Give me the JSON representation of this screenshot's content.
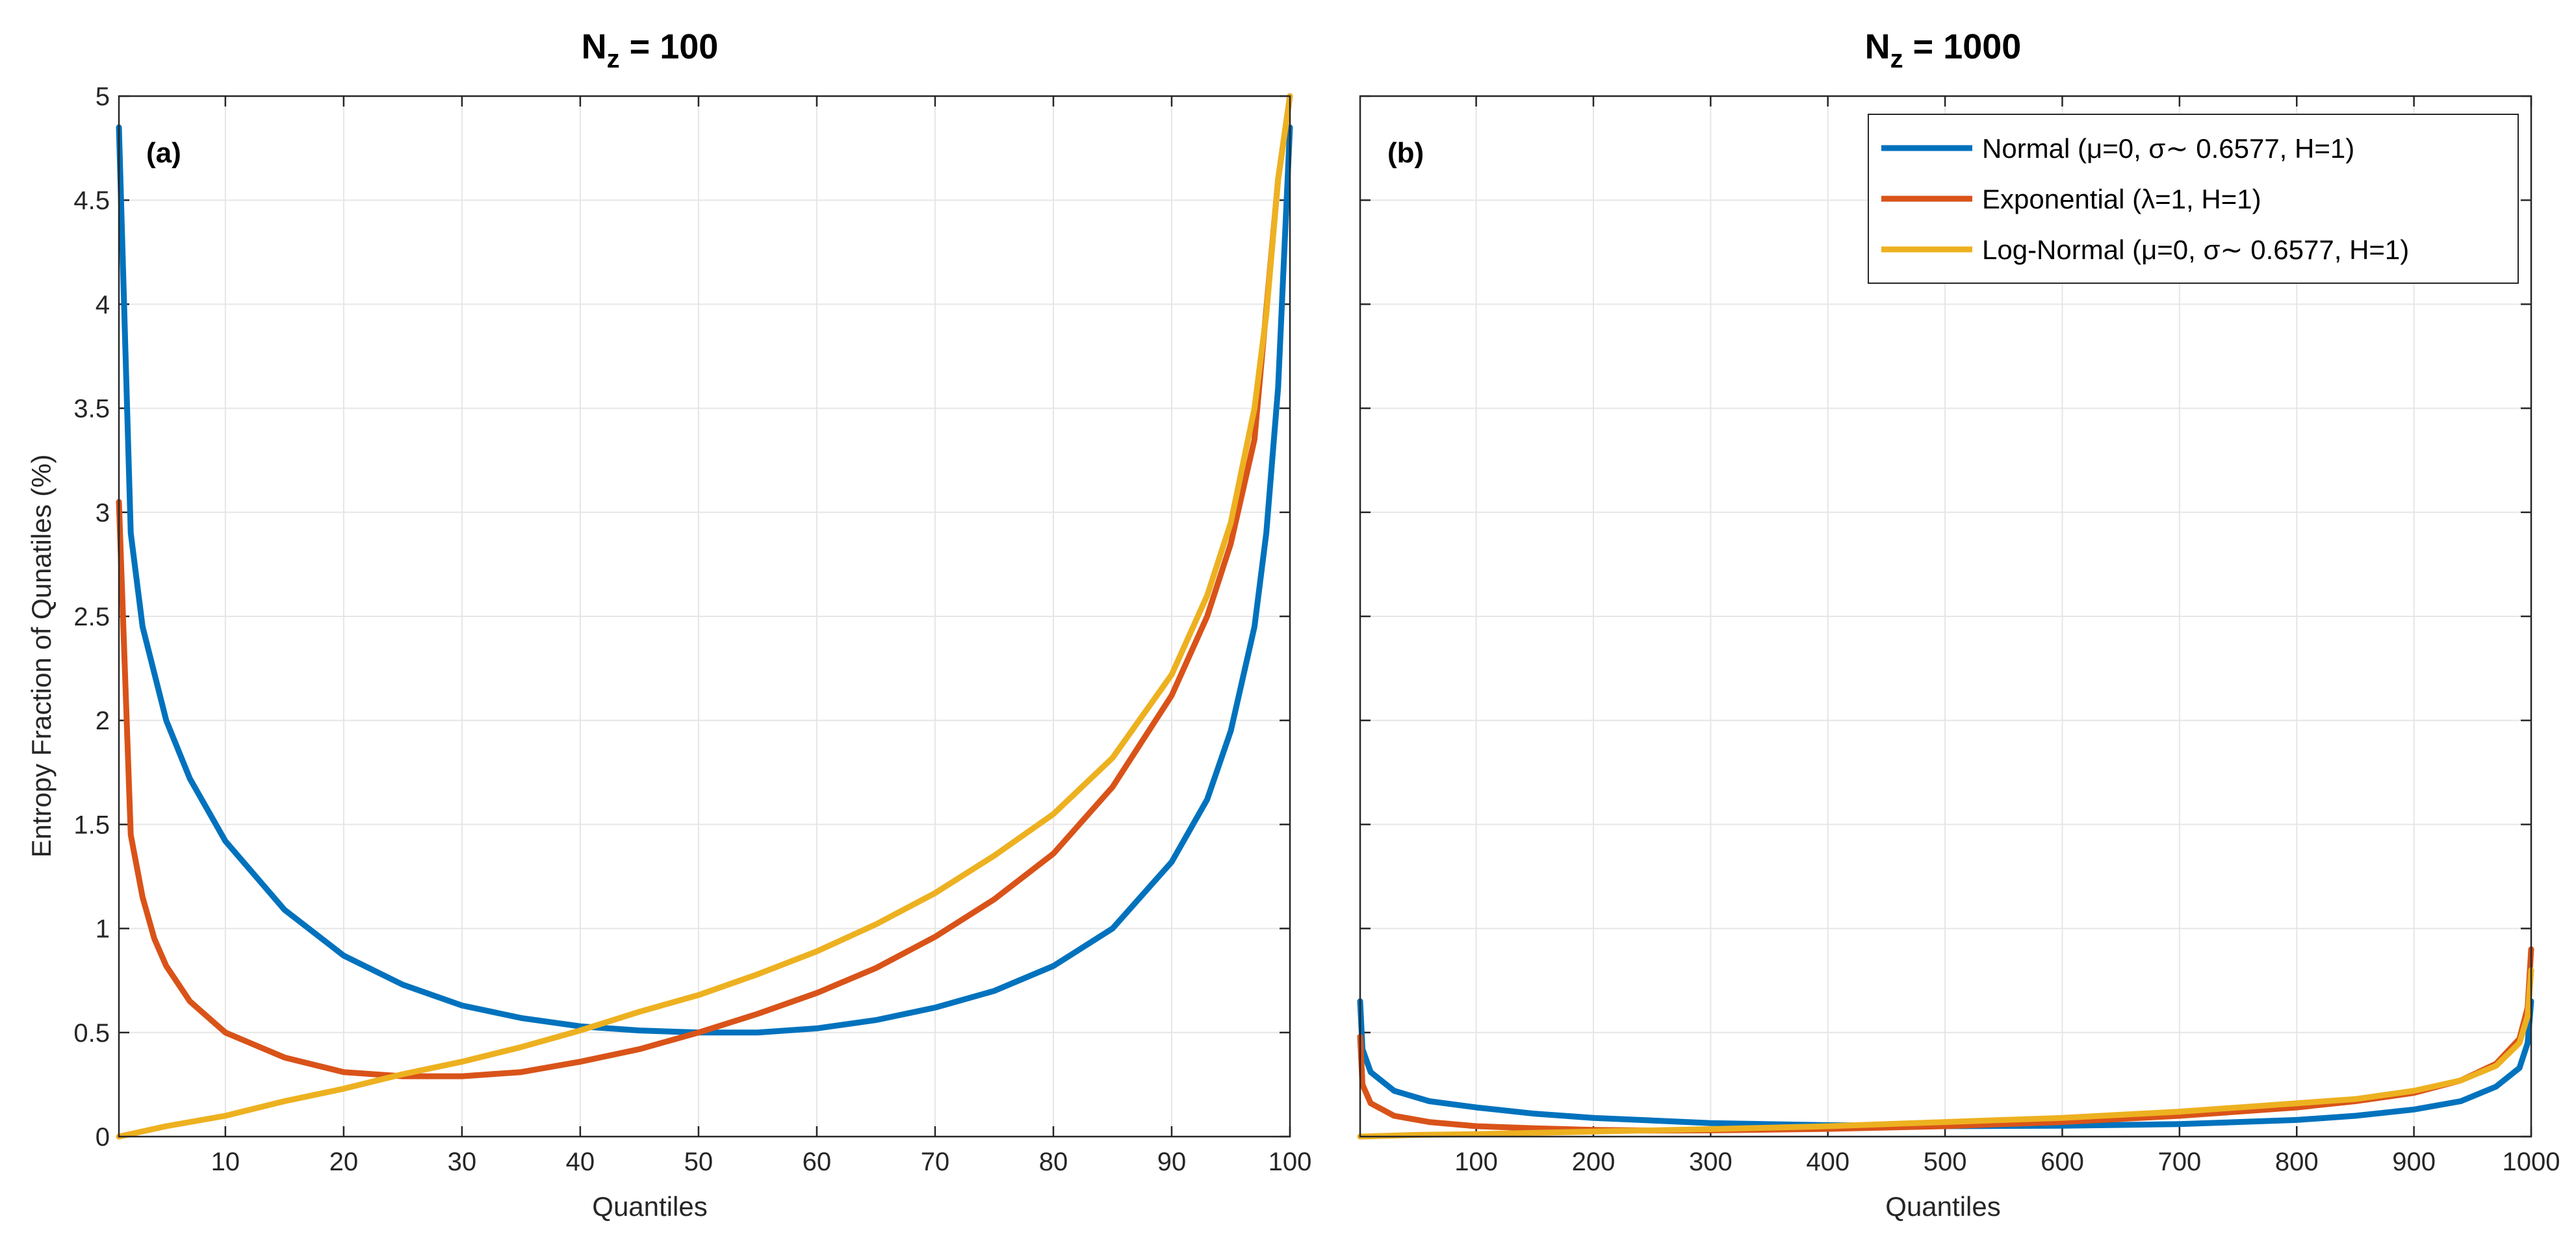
{
  "chart_data": [
    {
      "type": "line",
      "title": "N_z = 100",
      "title_main": "N",
      "title_sub": "z",
      "title_rest": " = 100",
      "panel_label": "(a)",
      "xlabel": "Quantiles",
      "ylabel": "Entropy Fraction of Qunatiles (%)",
      "xlim": [
        1,
        100
      ],
      "ylim": [
        0,
        5
      ],
      "xticks": [
        10,
        20,
        30,
        40,
        50,
        60,
        70,
        80,
        90,
        100
      ],
      "yticks": [
        0,
        0.5,
        1,
        1.5,
        2,
        2.5,
        3,
        3.5,
        4,
        4.5,
        5
      ],
      "series": [
        {
          "name": "Normal",
          "color": "#0072BD",
          "x": [
            1,
            2,
            3,
            5,
            7,
            10,
            15,
            20,
            25,
            30,
            35,
            40,
            45,
            50,
            55,
            60,
            65,
            70,
            75,
            80,
            85,
            90,
            93,
            95,
            97,
            98,
            99,
            100
          ],
          "y": [
            4.85,
            2.9,
            2.45,
            2.0,
            1.72,
            1.42,
            1.09,
            0.87,
            0.73,
            0.63,
            0.57,
            0.53,
            0.51,
            0.5,
            0.5,
            0.52,
            0.56,
            0.62,
            0.7,
            0.82,
            1.0,
            1.32,
            1.62,
            1.95,
            2.45,
            2.9,
            3.6,
            4.85
          ]
        },
        {
          "name": "Exponential",
          "color": "#D95319",
          "x": [
            1,
            2,
            3,
            4,
            5,
            7,
            10,
            15,
            20,
            25,
            30,
            35,
            40,
            45,
            50,
            55,
            60,
            65,
            70,
            75,
            80,
            85,
            90,
            93,
            95,
            97,
            99,
            100
          ],
          "y": [
            3.05,
            1.45,
            1.15,
            0.95,
            0.82,
            0.65,
            0.5,
            0.38,
            0.31,
            0.29,
            0.29,
            0.31,
            0.36,
            0.42,
            0.5,
            0.59,
            0.69,
            0.81,
            0.96,
            1.14,
            1.36,
            1.68,
            2.12,
            2.5,
            2.85,
            3.35,
            4.6,
            5.0
          ]
        },
        {
          "name": "Log-Normal",
          "color": "#EDB120",
          "x": [
            1,
            5,
            10,
            15,
            20,
            25,
            30,
            35,
            40,
            45,
            50,
            55,
            60,
            65,
            70,
            75,
            80,
            85,
            90,
            93,
            95,
            97,
            98,
            99,
            100
          ],
          "y": [
            0.0,
            0.05,
            0.1,
            0.17,
            0.23,
            0.3,
            0.36,
            0.43,
            0.51,
            0.6,
            0.68,
            0.78,
            0.89,
            1.02,
            1.17,
            1.35,
            1.55,
            1.82,
            2.22,
            2.6,
            2.95,
            3.5,
            3.95,
            4.6,
            5.0
          ]
        }
      ]
    },
    {
      "type": "line",
      "title": "N_z = 1000",
      "title_main": "N",
      "title_sub": "z",
      "title_rest": " = 1000",
      "panel_label": "(b)",
      "xlabel": "Quantiles",
      "ylabel": "",
      "xlim": [
        1,
        1000
      ],
      "ylim": [
        0,
        5
      ],
      "xticks": [
        100,
        200,
        300,
        400,
        500,
        600,
        700,
        800,
        900,
        1000
      ],
      "yticks": [
        0,
        0.5,
        1,
        1.5,
        2,
        2.5,
        3,
        3.5,
        4,
        4.5,
        5
      ],
      "legend_position": "top-right",
      "series": [
        {
          "name": "Normal (μ=0, σ∼ 0.6577, H=1)",
          "color": "#0072BD",
          "x": [
            1,
            3,
            10,
            30,
            60,
            100,
            150,
            200,
            300,
            400,
            500,
            600,
            700,
            800,
            850,
            900,
            940,
            970,
            990,
            997,
            1000
          ],
          "y": [
            0.65,
            0.42,
            0.31,
            0.22,
            0.17,
            0.14,
            0.11,
            0.09,
            0.065,
            0.055,
            0.05,
            0.052,
            0.06,
            0.08,
            0.1,
            0.13,
            0.17,
            0.24,
            0.33,
            0.45,
            0.65
          ]
        },
        {
          "name": "Exponential (λ=1, H=1)",
          "color": "#D95319",
          "x": [
            1,
            3,
            10,
            30,
            60,
            100,
            150,
            200,
            250,
            300,
            400,
            500,
            600,
            700,
            800,
            850,
            900,
            940,
            970,
            990,
            997,
            1000
          ],
          "y": [
            0.48,
            0.25,
            0.16,
            0.1,
            0.07,
            0.05,
            0.04,
            0.032,
            0.029,
            0.03,
            0.037,
            0.05,
            0.07,
            0.1,
            0.14,
            0.17,
            0.21,
            0.27,
            0.35,
            0.47,
            0.62,
            0.9
          ]
        },
        {
          "name": "Log-Normal (μ=0, σ∼ 0.6577, H=1)",
          "color": "#EDB120",
          "x": [
            1,
            50,
            100,
            200,
            300,
            400,
            500,
            600,
            700,
            800,
            850,
            900,
            940,
            970,
            990,
            997,
            1000
          ],
          "y": [
            0.0,
            0.008,
            0.012,
            0.024,
            0.036,
            0.05,
            0.07,
            0.09,
            0.12,
            0.16,
            0.18,
            0.22,
            0.27,
            0.34,
            0.45,
            0.58,
            0.8
          ]
        }
      ]
    }
  ]
}
